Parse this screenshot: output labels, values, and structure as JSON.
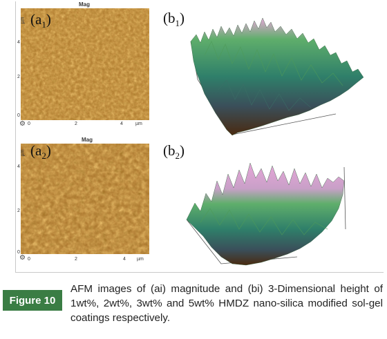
{
  "panels": {
    "a1": {
      "label": "(a",
      "sub": "1",
      "suffix": ")",
      "title": "Mag",
      "y_unit": "µm",
      "y_ticks": [
        "4",
        "2",
        "0"
      ],
      "x_ticks": [
        "0",
        "2",
        "4"
      ],
      "x_unit": "µm"
    },
    "a2": {
      "label": "(a",
      "sub": "2",
      "suffix": ")",
      "title": "Mag",
      "y_unit": "µm",
      "y_ticks": [
        "4",
        "2",
        "0"
      ],
      "x_ticks": [
        "0",
        "2",
        "4"
      ],
      "x_unit": "µm"
    },
    "b1": {
      "label": "(b",
      "sub": "1",
      "suffix": ")"
    },
    "b2": {
      "label": "(b",
      "sub": "2",
      "suffix": ")"
    }
  },
  "colors": {
    "afm_base": "#b07a2e",
    "caption_tag_bg": "#3a7d44",
    "surface_green": "#3e9a5c",
    "surface_pink": "#e6a6d8",
    "surface_brown": "#4a2a10"
  },
  "caption": {
    "tag": "Figure 10",
    "text": "AFM images of (ai) magnitude and (bi) 3-Dimensional height of 1wt%, 2wt%, 3wt% and 5wt% HMDZ nano-silica modified sol-gel coatings respectively."
  }
}
